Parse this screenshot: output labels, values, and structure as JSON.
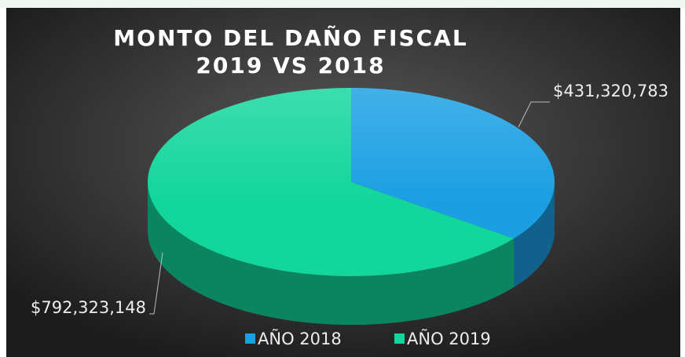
{
  "chart_data": {
    "type": "pie",
    "title": [
      "MONTO DEL DAÑO FISCAL",
      "2019 VS 2018"
    ],
    "categories": [
      "AÑO 2018",
      "AÑO 2019"
    ],
    "values": [
      431320783,
      792323148
    ],
    "value_labels": [
      "$431,320,783",
      "$792,323,148"
    ],
    "colors": [
      "#1a9fe3",
      "#12d69b"
    ],
    "legend": "bottom"
  }
}
